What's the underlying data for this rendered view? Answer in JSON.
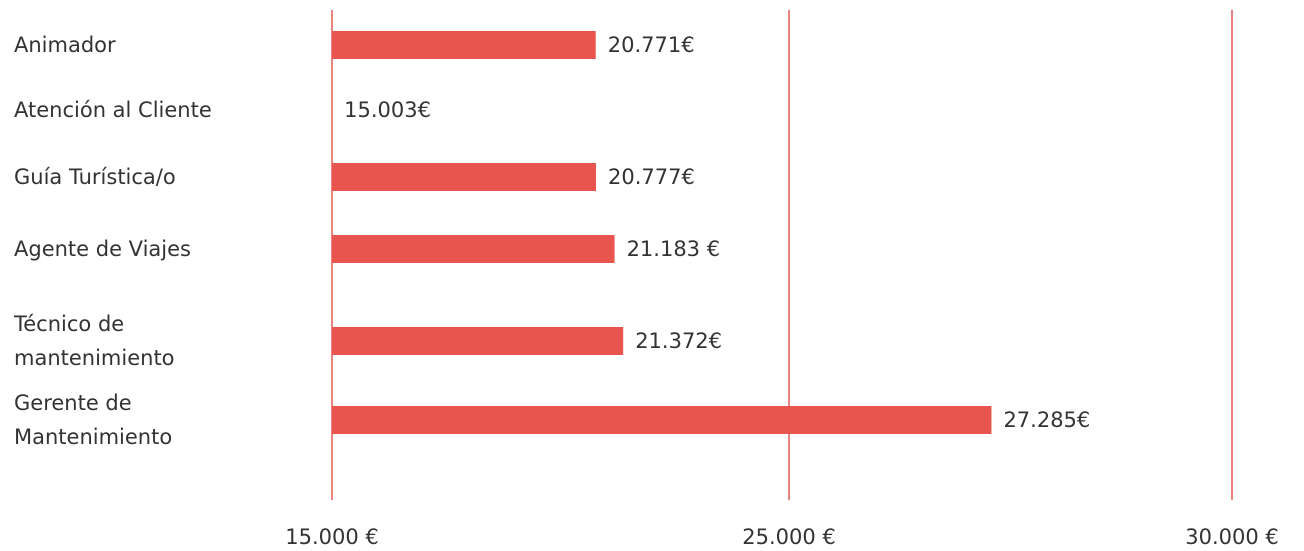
{
  "chart_data": {
    "type": "bar",
    "orientation": "horizontal",
    "categories": [
      "Animador",
      "Atención al Cliente",
      "Guía Turística/o",
      "Agente de Viajes",
      "Técnico de mantenimiento",
      "Gerente de Mantenimiento"
    ],
    "values": [
      20771,
      15003,
      20777,
      21183,
      21372,
      27285
    ],
    "value_labels": [
      "20.771€",
      "15.003€",
      "20.777€",
      "21.183 €",
      "21.372€",
      "27.285€"
    ],
    "color": "#e8554e",
    "xlim": [
      15000,
      30000
    ],
    "xticks": [
      {
        "value": 15000,
        "label": "15.000 €"
      },
      {
        "value": 25000,
        "label": "25.000 €"
      },
      {
        "value": 30000,
        "label": "30.000 €"
      }
    ],
    "grid": true,
    "grid_color": "#e05a52"
  }
}
